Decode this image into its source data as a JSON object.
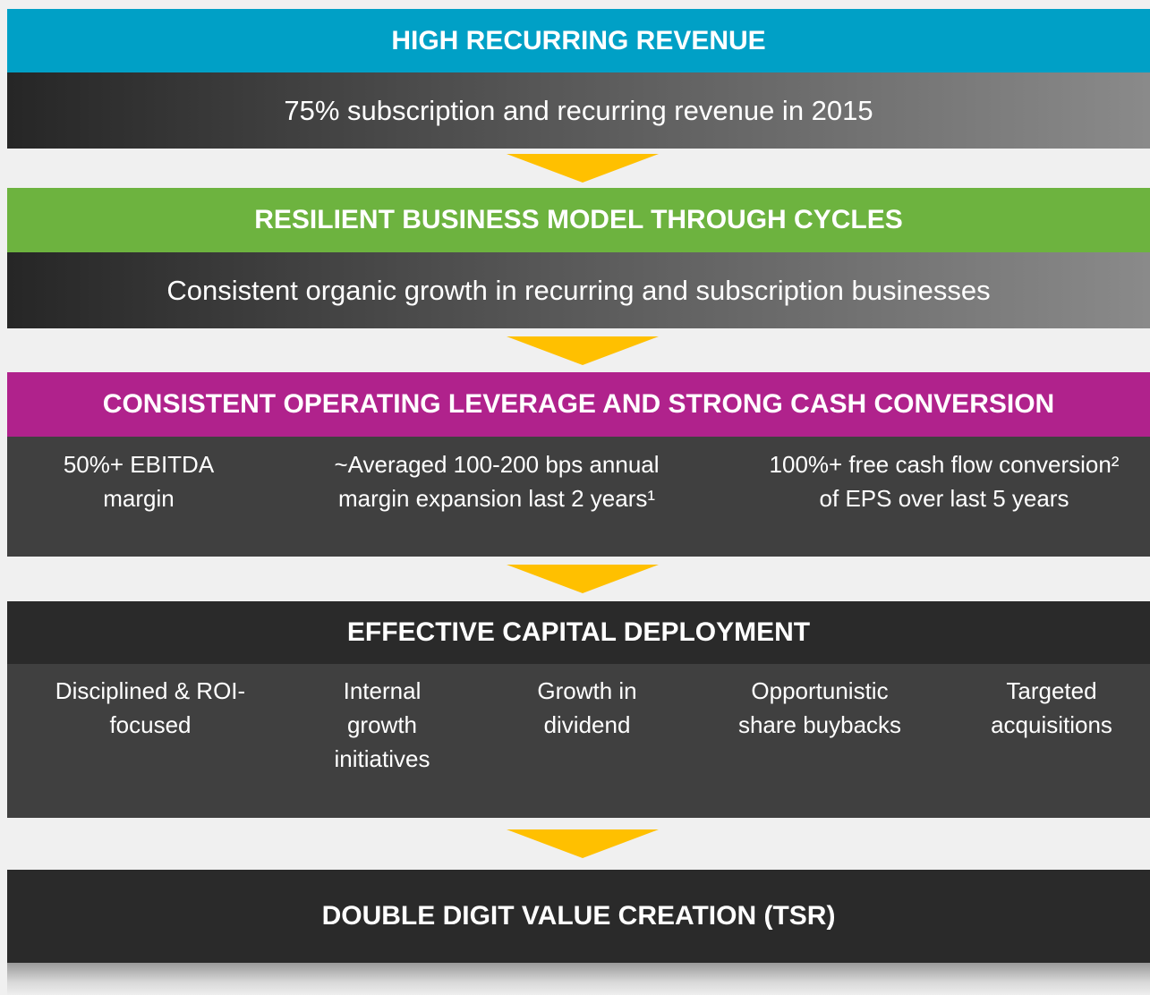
{
  "sections": [
    {
      "title": "HIGH RECURRING REVENUE",
      "body": "75% subscription and recurring revenue in 2015"
    },
    {
      "title": "RESILIENT BUSINESS MODEL THROUGH CYCLES",
      "body": "Consistent organic growth in recurring and subscription businesses"
    },
    {
      "title": "CONSISTENT OPERATING LEVERAGE AND STRONG CASH CONVERSION",
      "items": [
        [
          "50%+ EBITDA",
          "margin"
        ],
        [
          "~Averaged 100-200 bps annual",
          "margin expansion last 2 years¹"
        ],
        [
          "100%+ free cash flow conversion²",
          "of EPS over last 5 years"
        ]
      ]
    },
    {
      "title": "EFFECTIVE CAPITAL DEPLOYMENT",
      "items": [
        [
          "Disciplined & ROI-",
          "focused"
        ],
        [
          "Internal",
          "growth",
          "initiatives"
        ],
        [
          "Growth in",
          "dividend"
        ],
        [
          "Opportunistic",
          "share buybacks"
        ],
        [
          "Targeted",
          "acquisitions"
        ]
      ]
    },
    {
      "title": "DOUBLE DIGIT VALUE CREATION (TSR)"
    }
  ]
}
